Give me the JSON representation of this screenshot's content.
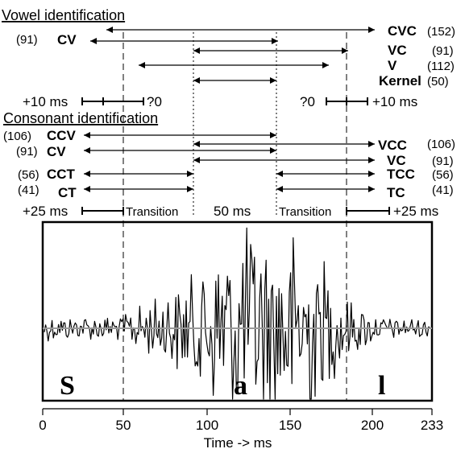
{
  "vowel": {
    "title": "Vowel identification",
    "rows": [
      {
        "left_count": "(91)",
        "left_label": "CV",
        "right_label": "CVC",
        "right_count": "(152)"
      },
      {
        "right_label": "VC",
        "right_count": "(91)"
      },
      {
        "right_label": "V",
        "right_count": "(112)"
      },
      {
        "right_label": "Kernel",
        "right_count": "(50)"
      }
    ],
    "window_left": "+10 ms",
    "window_left_q": "?0",
    "window_right_q": "?0",
    "window_right": "+10 ms"
  },
  "consonant": {
    "title": "Consonant identification",
    "rows": [
      {
        "left_count": "(106)",
        "left_label": "CCV",
        "right_label": "VCC",
        "right_count": "(106)"
      },
      {
        "left_count": "(91)",
        "left_label": "CV",
        "right_label": "VC",
        "right_count": "(91)"
      },
      {
        "left_count": "(56)",
        "left_label": "CCT",
        "right_label": "TCC",
        "right_count": "(56)"
      },
      {
        "left_count": "(41)",
        "left_label": "CT",
        "right_label": "TC",
        "right_count": "(41)"
      }
    ]
  },
  "segments": {
    "left_window": "+25 ms",
    "transition_left": "Transition",
    "kernel": "50 ms",
    "transition_right": "Transition",
    "right_window": "+25 ms"
  },
  "phonemes": [
    "S",
    "a",
    "l"
  ],
  "axis": {
    "ticks": [
      "0",
      "50",
      "100",
      "150",
      "200",
      "233"
    ],
    "label": "Time -> ms"
  }
}
